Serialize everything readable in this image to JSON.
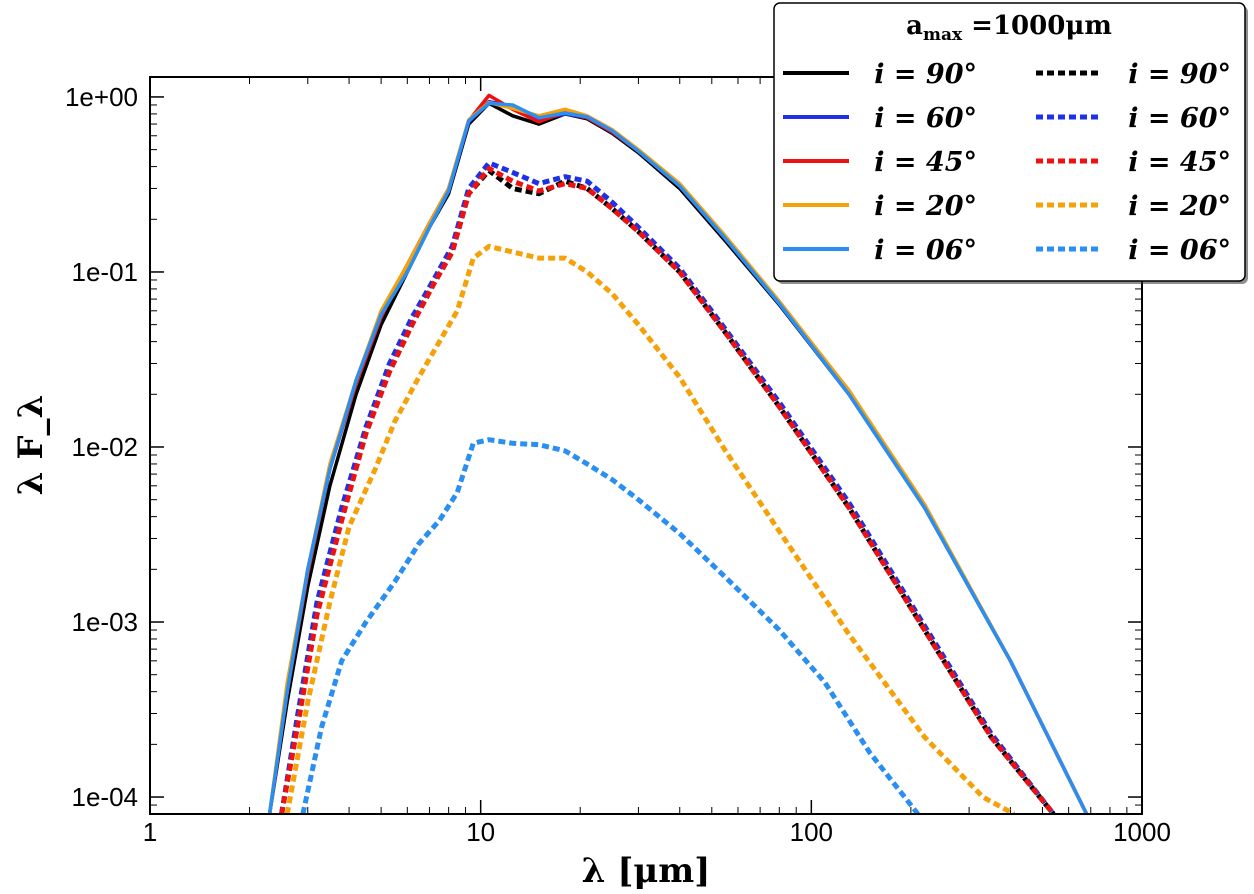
{
  "chart_data": {
    "type": "line",
    "title": "",
    "xlabel": "λ [μm]",
    "ylabel": "λ F_λ",
    "xscale": "log",
    "yscale": "log",
    "xlim": [
      1,
      1000
    ],
    "ylim": [
      8e-05,
      1.3
    ],
    "x_ticks": [
      {
        "value": 1,
        "label": "1"
      },
      {
        "value": 10,
        "label": "10"
      },
      {
        "value": 100,
        "label": "100"
      },
      {
        "value": 1000,
        "label": "1000"
      }
    ],
    "y_ticks": [
      {
        "value": 1,
        "label": "1e+00"
      },
      {
        "value": 0.1,
        "label": "1e-01"
      },
      {
        "value": 0.01,
        "label": "1e-02"
      },
      {
        "value": 0.001,
        "label": "1e-03"
      },
      {
        "value": 0.0001,
        "label": "1e-04"
      }
    ],
    "legend": {
      "title": "a_max =1000μm",
      "title_main": "a",
      "title_sub": "max",
      "title_rest": " =1000μm",
      "location": "top-right",
      "columns": 2
    },
    "series": [
      {
        "name": "i = 90°",
        "color": "#000000",
        "style": "solid",
        "x": [
          2.3,
          2.6,
          3.0,
          3.5,
          4.2,
          5.0,
          6.0,
          7.0,
          8.0,
          9.2,
          10.6,
          12.5,
          15,
          18,
          21,
          25,
          30,
          40,
          55,
          80,
          130,
          220,
          400,
          680
        ],
        "y": [
          8e-05,
          0.00035,
          0.0016,
          0.006,
          0.02,
          0.05,
          0.1,
          0.18,
          0.28,
          0.7,
          0.92,
          0.78,
          0.7,
          0.8,
          0.75,
          0.62,
          0.48,
          0.3,
          0.15,
          0.065,
          0.02,
          0.0045,
          0.0006,
          8e-05
        ]
      },
      {
        "name": "i = 60°",
        "color": "#1f31e6",
        "style": "solid",
        "x": [
          2.3,
          2.6,
          3.0,
          3.5,
          4.2,
          5.0,
          6.0,
          7.0,
          8.0,
          9.2,
          10.6,
          12.5,
          15,
          18,
          21,
          25,
          30,
          40,
          55,
          80,
          130,
          220,
          400,
          680
        ],
        "y": [
          8e-05,
          0.0004,
          0.002,
          0.0075,
          0.024,
          0.058,
          0.11,
          0.19,
          0.29,
          0.72,
          0.94,
          0.88,
          0.74,
          0.8,
          0.76,
          0.63,
          0.49,
          0.31,
          0.155,
          0.066,
          0.02,
          0.0045,
          0.0006,
          8e-05
        ]
      },
      {
        "name": "i = 45°",
        "color": "#ee1111",
        "style": "solid",
        "x": [
          2.3,
          2.6,
          3.0,
          3.5,
          4.2,
          5.0,
          6.0,
          7.0,
          8.0,
          9.2,
          10.6,
          12.5,
          15,
          18,
          21,
          25,
          30,
          40,
          55,
          80,
          130,
          220,
          400,
          680
        ],
        "y": [
          8e-05,
          0.0004,
          0.0019,
          0.0075,
          0.023,
          0.055,
          0.11,
          0.19,
          0.3,
          0.73,
          1.02,
          0.85,
          0.72,
          0.82,
          0.76,
          0.63,
          0.49,
          0.31,
          0.155,
          0.067,
          0.021,
          0.0046,
          0.0006,
          8e-05
        ]
      },
      {
        "name": "i = 20°",
        "color": "#f5a10a",
        "style": "solid",
        "x": [
          2.3,
          2.6,
          3.0,
          3.5,
          4.2,
          5.0,
          6.0,
          7.0,
          8.0,
          9.2,
          10.6,
          12.5,
          15,
          18,
          21,
          25,
          30,
          40,
          55,
          80,
          130,
          220,
          400,
          680
        ],
        "y": [
          8e-05,
          0.00045,
          0.002,
          0.008,
          0.024,
          0.06,
          0.11,
          0.19,
          0.3,
          0.74,
          0.93,
          0.86,
          0.78,
          0.85,
          0.78,
          0.65,
          0.5,
          0.32,
          0.16,
          0.068,
          0.021,
          0.0047,
          0.0006,
          8e-05
        ]
      },
      {
        "name": "i = 06°",
        "color": "#2a8ff0",
        "style": "solid",
        "x": [
          2.3,
          2.6,
          3.0,
          3.5,
          4.2,
          5.0,
          6.0,
          7.0,
          8.0,
          9.2,
          10.6,
          12.5,
          15,
          18,
          21,
          25,
          30,
          40,
          55,
          80,
          130,
          220,
          400,
          680
        ],
        "y": [
          8e-05,
          0.0004,
          0.002,
          0.0075,
          0.024,
          0.057,
          0.1,
          0.18,
          0.29,
          0.73,
          0.92,
          0.9,
          0.76,
          0.81,
          0.77,
          0.64,
          0.49,
          0.31,
          0.155,
          0.066,
          0.02,
          0.0045,
          0.0006,
          8e-05
        ]
      },
      {
        "name": "i = 90°",
        "color": "#000000",
        "style": "dotted",
        "x": [
          2.5,
          2.8,
          3.2,
          3.8,
          4.5,
          5.3,
          6.2,
          7.2,
          8.2,
          9.2,
          10.6,
          12.5,
          15,
          18,
          21,
          25,
          30,
          40,
          55,
          80,
          130,
          220,
          350,
          540
        ],
        "y": [
          8e-05,
          0.00028,
          0.0012,
          0.004,
          0.012,
          0.027,
          0.05,
          0.085,
          0.13,
          0.28,
          0.38,
          0.3,
          0.28,
          0.33,
          0.3,
          0.23,
          0.17,
          0.1,
          0.045,
          0.017,
          0.0045,
          0.0009,
          0.00022,
          8e-05
        ]
      },
      {
        "name": "i = 60°",
        "color": "#1f31e6",
        "style": "dotted",
        "x": [
          2.5,
          2.8,
          3.2,
          3.8,
          4.5,
          5.3,
          6.2,
          7.2,
          8.2,
          9.2,
          10.6,
          12.5,
          15,
          18,
          21,
          25,
          30,
          40,
          55,
          80,
          130,
          220,
          350,
          540
        ],
        "y": [
          8e-05,
          0.0003,
          0.0013,
          0.0045,
          0.013,
          0.03,
          0.055,
          0.09,
          0.14,
          0.3,
          0.42,
          0.37,
          0.32,
          0.35,
          0.33,
          0.25,
          0.18,
          0.105,
          0.047,
          0.018,
          0.0048,
          0.00095,
          0.00023,
          8e-05
        ]
      },
      {
        "name": "i = 45°",
        "color": "#ee1111",
        "style": "dotted",
        "x": [
          2.5,
          2.8,
          3.2,
          3.8,
          4.5,
          5.3,
          6.2,
          7.2,
          8.2,
          9.2,
          10.6,
          12.5,
          15,
          18,
          21,
          25,
          30,
          40,
          55,
          80,
          130,
          220,
          350,
          540
        ],
        "y": [
          8e-05,
          0.00026,
          0.0011,
          0.0038,
          0.012,
          0.027,
          0.05,
          0.085,
          0.13,
          0.28,
          0.39,
          0.33,
          0.29,
          0.32,
          0.3,
          0.23,
          0.17,
          0.1,
          0.045,
          0.017,
          0.0045,
          0.0009,
          0.00022,
          8e-05
        ]
      },
      {
        "name": "i = 20°",
        "color": "#f5a10a",
        "style": "dotted",
        "x": [
          2.6,
          3.0,
          3.5,
          4.0,
          4.8,
          5.5,
          6.5,
          7.5,
          8.5,
          9.5,
          10.6,
          12.5,
          15,
          18,
          21,
          25,
          30,
          40,
          55,
          80,
          130,
          220,
          330,
          410
        ],
        "y": [
          8e-05,
          0.00035,
          0.0013,
          0.0035,
          0.0075,
          0.014,
          0.025,
          0.04,
          0.06,
          0.12,
          0.14,
          0.13,
          0.12,
          0.12,
          0.1,
          0.075,
          0.05,
          0.025,
          0.0095,
          0.0033,
          0.00085,
          0.00022,
          0.0001,
          8e-05
        ]
      },
      {
        "name": "i = 06°",
        "color": "#2a8ff0",
        "style": "dotted",
        "x": [
          2.9,
          3.3,
          3.8,
          4.5,
          5.5,
          6.5,
          7.5,
          8.5,
          9.5,
          10.6,
          12.5,
          15,
          18,
          21,
          25,
          30,
          40,
          55,
          80,
          110,
          150,
          210
        ],
        "y": [
          8e-05,
          0.00025,
          0.0006,
          0.001,
          0.0017,
          0.0028,
          0.0038,
          0.0055,
          0.0105,
          0.011,
          0.0105,
          0.0103,
          0.0095,
          0.008,
          0.0065,
          0.005,
          0.0032,
          0.0018,
          0.0009,
          0.00045,
          0.00018,
          8e-05
        ]
      }
    ]
  }
}
